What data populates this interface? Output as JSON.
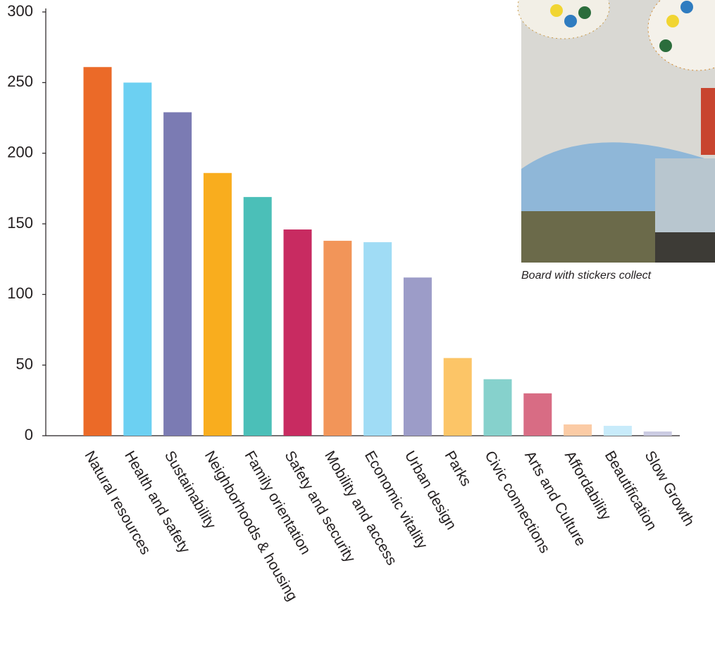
{
  "chart_data": {
    "type": "bar",
    "categories": [
      "Natural resources",
      "Health and safety",
      "Sustainability",
      "Neighborhoods & housing",
      "Family orientation",
      "Safety and security",
      "Mobility and access",
      "Economic vitality",
      "Urban design",
      "Parks",
      "Civic connections",
      "Arts and Culture",
      "Affordability",
      "Beautification",
      "Slow Growth"
    ],
    "values": [
      261,
      250,
      229,
      186,
      169,
      146,
      138,
      137,
      112,
      55,
      40,
      30,
      8,
      7,
      3
    ],
    "colors": [
      "#eb6a28",
      "#6cd0f2",
      "#7b7bb3",
      "#f9ad1e",
      "#4bbfb8",
      "#c82b61",
      "#f29559",
      "#a0dcf5",
      "#9c9cc8",
      "#fcc567",
      "#86d1cc",
      "#d86c84",
      "#fbcba5",
      "#c8ebfa",
      "#cbcbe2"
    ],
    "ylim": [
      0,
      300
    ],
    "yticks": [
      0,
      50,
      100,
      150,
      200,
      250,
      300
    ]
  },
  "photo": {
    "caption": "Board with stickers collect"
  }
}
